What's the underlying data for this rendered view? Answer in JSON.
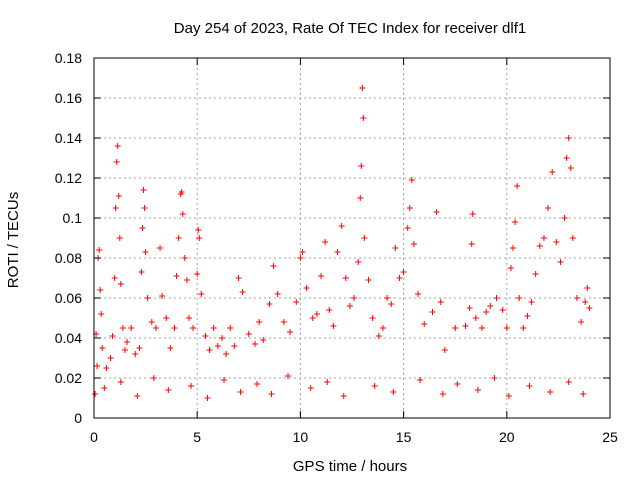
{
  "chart_data": {
    "type": "scatter",
    "title": "Day 254 of 2023, Rate Of TEC Index for receiver dlf1",
    "xlabel": "GPS time / hours",
    "ylabel": "ROTI / TECUs",
    "xlim": [
      0,
      25
    ],
    "ylim": [
      0,
      0.18
    ],
    "xticks": [
      0,
      5,
      10,
      15,
      20,
      25
    ],
    "xtick_labels": [
      "0",
      "5",
      "10",
      "15",
      "20",
      "25"
    ],
    "yticks": [
      0,
      0.02,
      0.04,
      0.06,
      0.08,
      0.1,
      0.12,
      0.14,
      0.16,
      0.18
    ],
    "ytick_labels": [
      "0",
      "0.02",
      "0.04",
      "0.06",
      "0.08",
      "0.1",
      "0.12",
      "0.14",
      "0.16",
      "0.18"
    ],
    "grid": true,
    "marker": "+",
    "color": "#ff0000",
    "series": [
      {
        "name": "dlf1",
        "points": [
          [
            0.1,
            0.042
          ],
          [
            0.15,
            0.026
          ],
          [
            0.2,
            0.08
          ],
          [
            0.25,
            0.084
          ],
          [
            0.3,
            0.064
          ],
          [
            0.35,
            0.052
          ],
          [
            0.4,
            0.035
          ],
          [
            0.6,
            0.025
          ],
          [
            0.8,
            0.03
          ],
          [
            0.9,
            0.041
          ],
          [
            1.0,
            0.07
          ],
          [
            1.05,
            0.105
          ],
          [
            1.1,
            0.128
          ],
          [
            1.15,
            0.136
          ],
          [
            1.2,
            0.111
          ],
          [
            1.25,
            0.09
          ],
          [
            1.3,
            0.067
          ],
          [
            1.4,
            0.045
          ],
          [
            1.5,
            0.034
          ],
          [
            1.6,
            0.038
          ],
          [
            1.8,
            0.045
          ],
          [
            2.0,
            0.032
          ],
          [
            2.2,
            0.035
          ],
          [
            2.3,
            0.073
          ],
          [
            2.35,
            0.095
          ],
          [
            2.4,
            0.114
          ],
          [
            2.45,
            0.105
          ],
          [
            2.5,
            0.083
          ],
          [
            2.6,
            0.06
          ],
          [
            2.8,
            0.048
          ],
          [
            3.0,
            0.045
          ],
          [
            3.2,
            0.085
          ],
          [
            3.3,
            0.061
          ],
          [
            3.5,
            0.05
          ],
          [
            3.7,
            0.035
          ],
          [
            3.9,
            0.045
          ],
          [
            4.0,
            0.071
          ],
          [
            4.1,
            0.09
          ],
          [
            4.2,
            0.112
          ],
          [
            4.25,
            0.113
          ],
          [
            4.3,
            0.102
          ],
          [
            4.4,
            0.08
          ],
          [
            4.5,
            0.069
          ],
          [
            4.6,
            0.05
          ],
          [
            4.8,
            0.045
          ],
          [
            5.0,
            0.072
          ],
          [
            5.05,
            0.094
          ],
          [
            5.1,
            0.09
          ],
          [
            5.2,
            0.062
          ],
          [
            5.4,
            0.041
          ],
          [
            5.6,
            0.034
          ],
          [
            5.8,
            0.045
          ],
          [
            6.0,
            0.036
          ],
          [
            6.2,
            0.04
          ],
          [
            6.4,
            0.032
          ],
          [
            6.6,
            0.045
          ],
          [
            6.8,
            0.036
          ],
          [
            7.0,
            0.07
          ],
          [
            7.2,
            0.063
          ],
          [
            7.5,
            0.042
          ],
          [
            7.8,
            0.037
          ],
          [
            8.0,
            0.048
          ],
          [
            8.2,
            0.039
          ],
          [
            8.5,
            0.057
          ],
          [
            8.7,
            0.076
          ],
          [
            8.9,
            0.062
          ],
          [
            9.2,
            0.048
          ],
          [
            9.5,
            0.043
          ],
          [
            9.8,
            0.058
          ],
          [
            10.0,
            0.08
          ],
          [
            10.1,
            0.083
          ],
          [
            10.3,
            0.065
          ],
          [
            10.6,
            0.05
          ],
          [
            10.8,
            0.052
          ],
          [
            11.0,
            0.071
          ],
          [
            11.2,
            0.088
          ],
          [
            11.4,
            0.054
          ],
          [
            11.6,
            0.046
          ],
          [
            11.8,
            0.083
          ],
          [
            12.0,
            0.096
          ],
          [
            12.2,
            0.07
          ],
          [
            12.4,
            0.056
          ],
          [
            12.6,
            0.06
          ],
          [
            12.8,
            0.078
          ],
          [
            12.9,
            0.11
          ],
          [
            12.95,
            0.126
          ],
          [
            13.0,
            0.165
          ],
          [
            13.05,
            0.15
          ],
          [
            13.1,
            0.09
          ],
          [
            13.3,
            0.069
          ],
          [
            13.5,
            0.05
          ],
          [
            13.8,
            0.041
          ],
          [
            14.0,
            0.045
          ],
          [
            14.2,
            0.06
          ],
          [
            14.4,
            0.057
          ],
          [
            14.6,
            0.085
          ],
          [
            14.8,
            0.07
          ],
          [
            15.0,
            0.073
          ],
          [
            15.2,
            0.095
          ],
          [
            15.3,
            0.105
          ],
          [
            15.4,
            0.119
          ],
          [
            15.5,
            0.087
          ],
          [
            15.7,
            0.062
          ],
          [
            16.0,
            0.047
          ],
          [
            16.4,
            0.053
          ],
          [
            16.6,
            0.103
          ],
          [
            16.8,
            0.058
          ],
          [
            17.0,
            0.034
          ],
          [
            17.5,
            0.045
          ],
          [
            18.0,
            0.046
          ],
          [
            18.2,
            0.055
          ],
          [
            18.3,
            0.087
          ],
          [
            18.35,
            0.102
          ],
          [
            18.5,
            0.05
          ],
          [
            18.8,
            0.045
          ],
          [
            19.0,
            0.053
          ],
          [
            19.2,
            0.056
          ],
          [
            19.5,
            0.06
          ],
          [
            19.8,
            0.054
          ],
          [
            20.0,
            0.045
          ],
          [
            20.2,
            0.075
          ],
          [
            20.3,
            0.085
          ],
          [
            20.4,
            0.098
          ],
          [
            20.5,
            0.116
          ],
          [
            20.6,
            0.06
          ],
          [
            20.8,
            0.045
          ],
          [
            21.0,
            0.051
          ],
          [
            21.2,
            0.058
          ],
          [
            21.4,
            0.072
          ],
          [
            21.6,
            0.086
          ],
          [
            21.8,
            0.09
          ],
          [
            22.0,
            0.105
          ],
          [
            22.2,
            0.123
          ],
          [
            22.4,
            0.088
          ],
          [
            22.6,
            0.078
          ],
          [
            22.8,
            0.1
          ],
          [
            22.9,
            0.13
          ],
          [
            23.0,
            0.14
          ],
          [
            23.1,
            0.125
          ],
          [
            23.2,
            0.09
          ],
          [
            23.4,
            0.06
          ],
          [
            23.6,
            0.048
          ],
          [
            23.8,
            0.058
          ],
          [
            23.9,
            0.065
          ],
          [
            24.0,
            0.055
          ],
          [
            0.05,
            0.012
          ],
          [
            0.5,
            0.015
          ],
          [
            1.3,
            0.018
          ],
          [
            2.1,
            0.011
          ],
          [
            2.9,
            0.02
          ],
          [
            3.6,
            0.014
          ],
          [
            4.7,
            0.016
          ],
          [
            5.5,
            0.01
          ],
          [
            6.3,
            0.019
          ],
          [
            7.1,
            0.013
          ],
          [
            7.9,
            0.017
          ],
          [
            8.6,
            0.012
          ],
          [
            9.4,
            0.021
          ],
          [
            10.5,
            0.015
          ],
          [
            11.3,
            0.018
          ],
          [
            12.1,
            0.011
          ],
          [
            13.6,
            0.016
          ],
          [
            14.5,
            0.013
          ],
          [
            15.8,
            0.019
          ],
          [
            16.9,
            0.012
          ],
          [
            17.6,
            0.017
          ],
          [
            18.6,
            0.014
          ],
          [
            19.4,
            0.02
          ],
          [
            20.1,
            0.011
          ],
          [
            21.1,
            0.016
          ],
          [
            22.1,
            0.013
          ],
          [
            23.0,
            0.018
          ],
          [
            23.7,
            0.012
          ]
        ]
      }
    ]
  }
}
